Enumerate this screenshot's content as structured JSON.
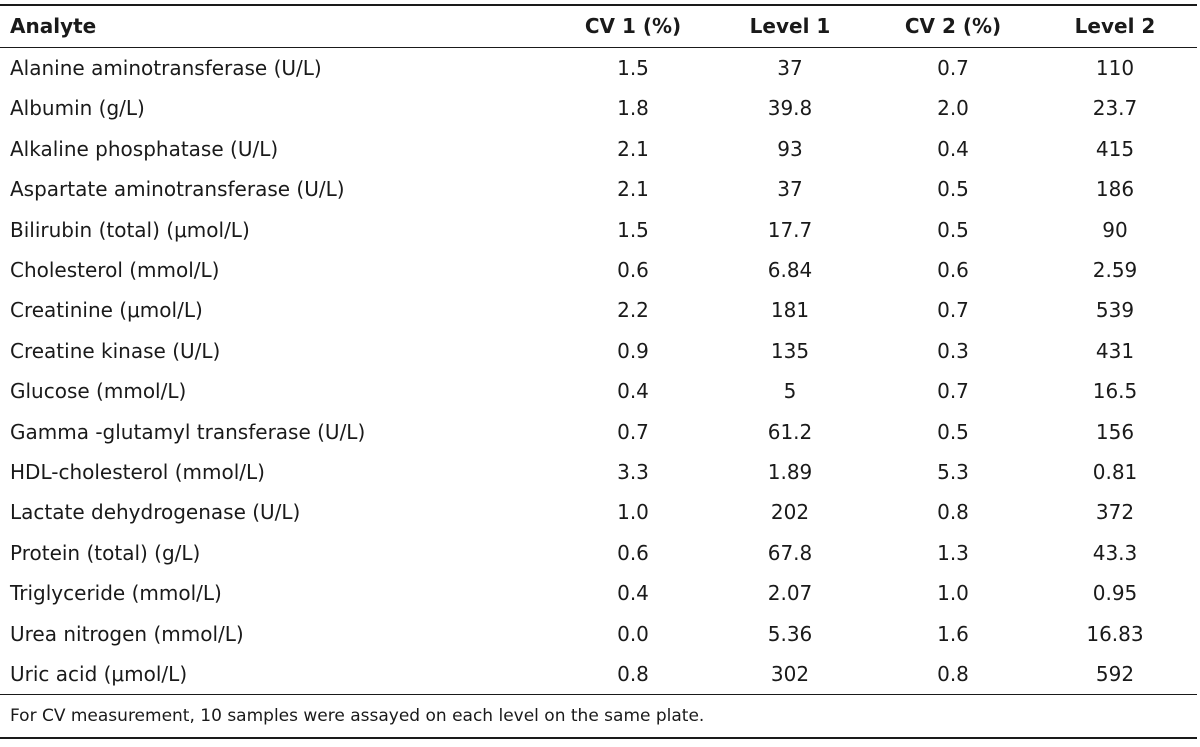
{
  "table": {
    "headers": {
      "analyte": "Analyte",
      "cv1": "CV 1 (%)",
      "level1": "Level 1",
      "cv2": "CV 2 (%)",
      "level2": "Level 2"
    },
    "rows": [
      {
        "analyte": "Alanine aminotransferase (U/L)",
        "cv1": "1.5",
        "level1": "37",
        "cv2": "0.7",
        "level2": "110"
      },
      {
        "analyte": "Albumin (g/L)",
        "cv1": "1.8",
        "level1": "39.8",
        "cv2": "2.0",
        "level2": "23.7"
      },
      {
        "analyte": "Alkaline phosphatase (U/L)",
        "cv1": "2.1",
        "level1": "93",
        "cv2": "0.4",
        "level2": "415"
      },
      {
        "analyte": "Aspartate aminotransferase (U/L)",
        "cv1": "2.1",
        "level1": "37",
        "cv2": "0.5",
        "level2": "186"
      },
      {
        "analyte": "Bilirubin (total) (μmol/L)",
        "cv1": "1.5",
        "level1": "17.7",
        "cv2": "0.5",
        "level2": "90"
      },
      {
        "analyte": "Cholesterol (mmol/L)",
        "cv1": "0.6",
        "level1": "6.84",
        "cv2": "0.6",
        "level2": "2.59"
      },
      {
        "analyte": "Creatinine (μmol/L)",
        "cv1": "2.2",
        "level1": "181",
        "cv2": "0.7",
        "level2": "539"
      },
      {
        "analyte": "Creatine kinase (U/L)",
        "cv1": "0.9",
        "level1": "135",
        "cv2": "0.3",
        "level2": "431"
      },
      {
        "analyte": "Glucose (mmol/L)",
        "cv1": "0.4",
        "level1": "5",
        "cv2": "0.7",
        "level2": "16.5"
      },
      {
        "analyte": "Gamma -glutamyl transferase (U/L)",
        "cv1": "0.7",
        "level1": "61.2",
        "cv2": "0.5",
        "level2": "156"
      },
      {
        "analyte": "HDL-cholesterol (mmol/L)",
        "cv1": "3.3",
        "level1": "1.89",
        "cv2": "5.3",
        "level2": "0.81"
      },
      {
        "analyte": "Lactate dehydrogenase (U/L)",
        "cv1": "1.0",
        "level1": "202",
        "cv2": "0.8",
        "level2": "372"
      },
      {
        "analyte": "Protein (total) (g/L)",
        "cv1": "0.6",
        "level1": "67.8",
        "cv2": "1.3",
        "level2": "43.3"
      },
      {
        "analyte": "Triglyceride (mmol/L)",
        "cv1": "0.4",
        "level1": "2.07",
        "cv2": "1.0",
        "level2": "0.95"
      },
      {
        "analyte": "Urea nitrogen (mmol/L)",
        "cv1": "0.0",
        "level1": "5.36",
        "cv2": "1.6",
        "level2": "16.83"
      },
      {
        "analyte": "Uric acid (μmol/L)",
        "cv1": "0.8",
        "level1": "302",
        "cv2": "0.8",
        "level2": "592"
      }
    ],
    "footnote": "For CV measurement, 10 samples were assayed on each level on the same plate."
  }
}
